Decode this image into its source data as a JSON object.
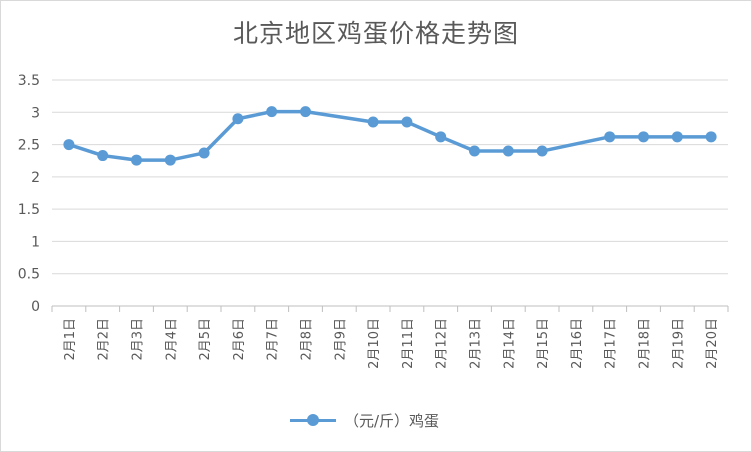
{
  "chart_data": {
    "type": "line",
    "title": "北京地区鸡蛋价格走势图",
    "categories": [
      "2月1日",
      "2月2日",
      "2月3日",
      "2月4日",
      "2月5日",
      "2月6日",
      "2月7日",
      "2月8日",
      "2月9日",
      "2月10日",
      "2月11日",
      "2月12日",
      "2月13日",
      "2月14日",
      "2月15日",
      "2月16日",
      "2月17日",
      "2月18日",
      "2月19日",
      "2月20日"
    ],
    "series": [
      {
        "name": "（元/斤）鸡蛋",
        "color": "#5b9bd5",
        "values": [
          2.5,
          2.33,
          2.26,
          2.26,
          2.37,
          2.9,
          3.01,
          3.01,
          null,
          2.85,
          2.85,
          2.62,
          2.4,
          2.4,
          2.4,
          null,
          2.62,
          2.62,
          2.62,
          2.62
        ]
      }
    ],
    "yticks": [
      "0",
      "0.5",
      "1",
      "1.5",
      "2",
      "2.5",
      "3",
      "3.5"
    ],
    "ylim": [
      0,
      3.5
    ],
    "grid": true,
    "legend": "bottom"
  }
}
